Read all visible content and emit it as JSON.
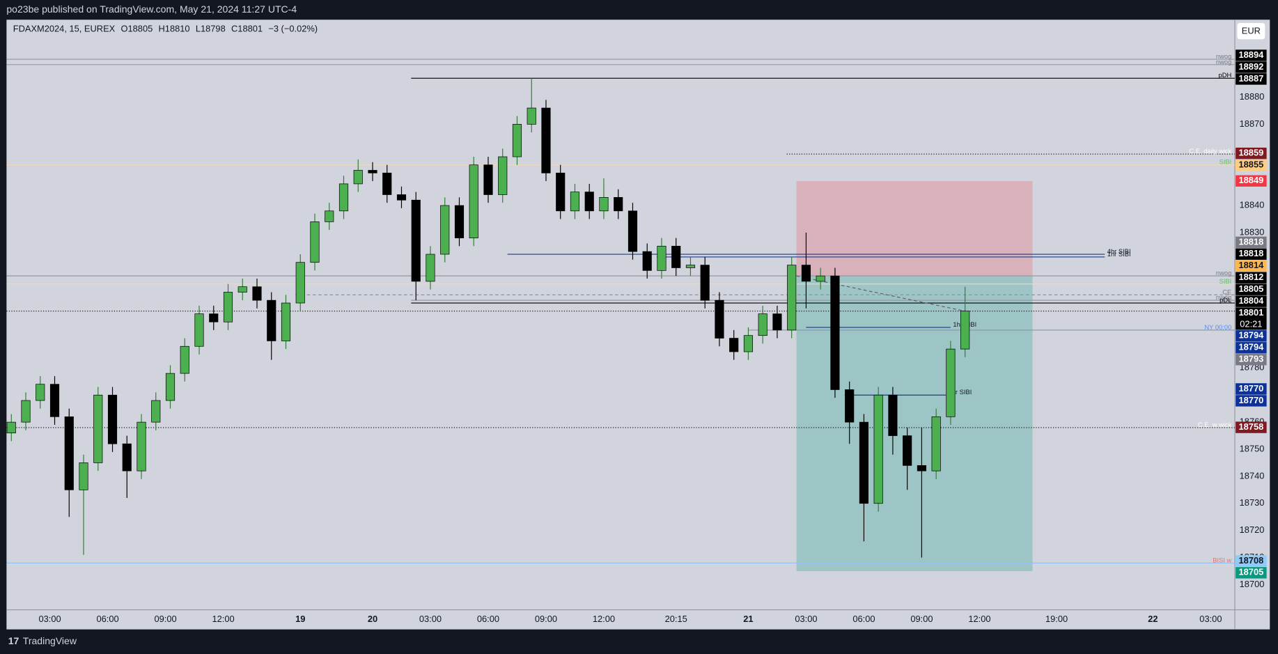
{
  "header": {
    "text": "po23be published on TradingView.com, May 21, 2024 11:27 UTC-4"
  },
  "footer": {
    "brand": "TradingView"
  },
  "chart_data": {
    "type": "candlestick",
    "symbol_info": [
      "FDAXM2024, 15, EUREX",
      "O18805",
      "H18810",
      "L18798",
      "C18801",
      "−3 (−0.02%)"
    ],
    "currency": "EUR",
    "up_color": "#4caf50",
    "down_color": "#000000",
    "x": [
      1,
      4,
      7,
      10,
      13,
      16,
      19,
      22,
      25,
      28,
      31,
      34,
      37,
      40,
      43,
      46,
      49,
      52,
      55,
      58,
      61,
      64,
      67,
      70,
      73,
      76,
      79,
      82,
      85,
      88,
      91,
      94,
      97,
      100,
      103,
      106,
      109,
      112,
      115,
      118,
      121,
      124,
      127,
      130,
      133,
      136,
      139,
      142,
      145,
      148,
      151,
      154,
      157,
      160,
      163,
      166,
      169,
      172,
      175,
      178,
      181,
      184,
      187,
      190,
      193,
      196,
      199
    ],
    "ohlc": {
      "open": [
        18756,
        18760,
        18768,
        18774,
        18762,
        18735,
        18745,
        18770,
        18752,
        18742,
        18760,
        18768,
        18778,
        18788,
        18800,
        18797,
        18808,
        18810,
        18805,
        18790,
        18804,
        18819,
        18834,
        18838,
        18848,
        18853,
        18852,
        18844,
        18842,
        18812,
        18822,
        18840,
        18828,
        18855,
        18844,
        18858,
        18870,
        18876,
        18852,
        18838,
        18845,
        18838,
        18843,
        18838,
        18823,
        18816,
        18825,
        18817,
        18818,
        18805,
        18791,
        18786,
        18792,
        18800,
        18794,
        18818,
        18812,
        18814,
        18772,
        18760,
        18730,
        18770,
        18755,
        18744,
        18742,
        18762,
        18787
      ],
      "high": [
        18763,
        18771,
        18777,
        18777,
        18765,
        18748,
        18773,
        18773,
        18755,
        18763,
        18771,
        18781,
        18791,
        18803,
        18803,
        18811,
        18813,
        18813,
        18808,
        18807,
        18822,
        18837,
        18841,
        18851,
        18857,
        18856,
        18855,
        18847,
        18845,
        18825,
        18843,
        18843,
        18858,
        18858,
        18861,
        18873,
        18887,
        18879,
        18855,
        18848,
        18848,
        18850,
        18846,
        18841,
        18826,
        18828,
        18828,
        18821,
        18821,
        18808,
        18794,
        18795,
        18803,
        18803,
        18821,
        18830,
        18817,
        18817,
        18775,
        18763,
        18773,
        18773,
        18758,
        18758,
        18765,
        18790,
        18810
      ],
      "low": [
        18753,
        18757,
        18765,
        18759,
        18725,
        18711,
        18742,
        18749,
        18732,
        18739,
        18757,
        18765,
        18775,
        18785,
        18794,
        18794,
        18805,
        18802,
        18783,
        18787,
        18801,
        18816,
        18831,
        18835,
        18845,
        18849,
        18841,
        18839,
        18805,
        18809,
        18819,
        18825,
        18825,
        18841,
        18841,
        18855,
        18867,
        18849,
        18835,
        18835,
        18835,
        18835,
        18835,
        18820,
        18813,
        18813,
        18814,
        18814,
        18802,
        18788,
        18783,
        18783,
        18789,
        18791,
        18791,
        18802,
        18809,
        18769,
        18752,
        18716,
        18727,
        18748,
        18735,
        18710,
        18739,
        18759,
        18784
      ],
      "close": [
        18760,
        18768,
        18774,
        18762,
        18735,
        18745,
        18770,
        18752,
        18742,
        18760,
        18768,
        18778,
        18788,
        18800,
        18797,
        18808,
        18810,
        18805,
        18790,
        18804,
        18819,
        18834,
        18838,
        18848,
        18853,
        18852,
        18844,
        18842,
        18812,
        18822,
        18840,
        18828,
        18855,
        18844,
        18858,
        18870,
        18876,
        18852,
        18838,
        18845,
        18838,
        18843,
        18838,
        18823,
        18816,
        18825,
        18817,
        18818,
        18805,
        18791,
        18786,
        18792,
        18800,
        18794,
        18818,
        18812,
        18814,
        18772,
        18760,
        18730,
        18770,
        18755,
        18744,
        18742,
        18762,
        18787,
        18801
      ]
    },
    "xlim": [
      0,
      255
    ],
    "xticks": [
      {
        "value": 9,
        "label": "03:00"
      },
      {
        "value": 21,
        "label": "06:00"
      },
      {
        "value": 33,
        "label": "09:00"
      },
      {
        "value": 45,
        "label": "12:00"
      },
      {
        "value": 61,
        "label": "19"
      },
      {
        "value": 76,
        "label": "20"
      },
      {
        "value": 88,
        "label": "03:00"
      },
      {
        "value": 100,
        "label": "06:00"
      },
      {
        "value": 112,
        "label": "09:00"
      },
      {
        "value": 124,
        "label": "12:00"
      },
      {
        "value": 139,
        "label": "20:15"
      },
      {
        "value": 154,
        "label": "21"
      },
      {
        "value": 166,
        "label": "03:00"
      },
      {
        "value": 178,
        "label": "06:00"
      },
      {
        "value": 190,
        "label": "09:00"
      },
      {
        "value": 202,
        "label": "12:00"
      },
      {
        "value": 218,
        "label": "19:00"
      },
      {
        "value": 238,
        "label": "22"
      },
      {
        "value": 250,
        "label": "03:00"
      }
    ],
    "ylim": [
      18690.7,
      18908.6
    ],
    "yticks": [
      18700,
      18710,
      18720,
      18730,
      18740,
      18750,
      18760,
      18780,
      18830,
      18840,
      18870,
      18880
    ],
    "position": {
      "stop": 18849,
      "entry": 18814,
      "target": 18705,
      "from": 164,
      "to": 213
    },
    "levels": [
      {
        "label": "nwog",
        "value": 18894,
        "color": "#9598a1",
        "text_color": "#787b86",
        "style": "solid"
      },
      {
        "label": "nwog",
        "value": 18892,
        "color": "#9598a1",
        "text_color": "#787b86",
        "style": "solid"
      },
      {
        "label": "pDH",
        "value": 18887,
        "color": "#000000",
        "text_color": "#000000",
        "style": "solid",
        "from": 84
      },
      {
        "label": "C.E. daily wick",
        "value": 18859,
        "color": "#000000",
        "text_color": "#ffffff",
        "style": "dotted",
        "from": 162
      },
      {
        "label": "SIBI",
        "value": 18855,
        "color": "#f0d9b5",
        "text_color": "#66bb6a",
        "style": "solid"
      },
      {
        "label": "4hr SIBI",
        "value": 18822,
        "color": "#1a3a8c",
        "text_color": "#131722",
        "style": "solid",
        "from": 104,
        "to": 228
      },
      {
        "label": "1hr SIBI",
        "value": 18821,
        "color": "#1a3a8c",
        "text_color": "#131722",
        "style": "solid",
        "from": 135,
        "to": 228
      },
      {
        "label": "nwog",
        "value": 18814,
        "color": "#9598a1",
        "text_color": "#787b86",
        "style": "solid"
      },
      {
        "label": "SIBI",
        "value": 18811,
        "color": "#f0d9b5",
        "text_color": "#66bb6a",
        "style": "solid"
      },
      {
        "label": "CE",
        "value": 18807,
        "color": "#8a93a8",
        "text_color": "#787b86",
        "style": "dashed",
        "from": 60
      },
      {
        "label": "nwog",
        "value": 18805,
        "color": "#9598a1",
        "text_color": "#787b86",
        "style": "solid",
        "from": 84
      },
      {
        "label": "pDL",
        "value": 18804,
        "color": "#000000",
        "text_color": "#000000",
        "style": "solid",
        "from": 84
      },
      {
        "label": "NY 00:00",
        "value": 18794,
        "color": "#8a93a8",
        "text_color": "#5b8def",
        "style": "solid",
        "from": 154
      },
      {
        "label": "1hr SIBI",
        "value": 18795,
        "color": "#1a3a8c",
        "text_color": "#131722",
        "style": "solid",
        "from": 166,
        "to": 196
      },
      {
        "label": "1hr SIBI",
        "value": 18770,
        "color": "#1a3a8c",
        "text_color": "#131722",
        "style": "solid",
        "from": 174,
        "to": 195
      },
      {
        "label": "C.E. w wick",
        "value": 18758,
        "color": "#000000",
        "text_color": "#ffffff",
        "style": "dotted"
      },
      {
        "label": "BISI w",
        "value": 18708,
        "color": "#90bff9",
        "text_color": "#e57373",
        "style": "solid"
      }
    ],
    "last_price": {
      "value": 18801,
      "countdown": "02:21"
    },
    "price_labels": [
      {
        "value": 18894,
        "color": "#000000"
      },
      {
        "value": 18892,
        "color": "#000000"
      },
      {
        "value": 18887,
        "color": "#000000"
      },
      {
        "value": 18859,
        "color": "#801922"
      },
      {
        "value": 18855,
        "color": "#ffcc80"
      },
      {
        "value": 18849,
        "color": "#f23645"
      },
      {
        "value": 18818,
        "color": "#787b86"
      },
      {
        "value": 18818,
        "color": "#000000"
      },
      {
        "value": 18814,
        "color": "#ffb74d"
      },
      {
        "value": 18812,
        "color": "#000000"
      },
      {
        "value": 18805,
        "color": "#000000"
      },
      {
        "value": 18804,
        "color": "#000000"
      },
      {
        "value": 18794,
        "color": "#0c3299"
      },
      {
        "value": 18794,
        "color": "#0c3299"
      },
      {
        "value": 18793,
        "color": "#787b86"
      },
      {
        "value": 18770,
        "color": "#0c3299"
      },
      {
        "value": 18770,
        "color": "#0c3299"
      },
      {
        "value": 18758,
        "color": "#801922"
      },
      {
        "value": 18708,
        "color": "#90caf9"
      },
      {
        "value": 18705,
        "color": "#089981"
      }
    ]
  }
}
